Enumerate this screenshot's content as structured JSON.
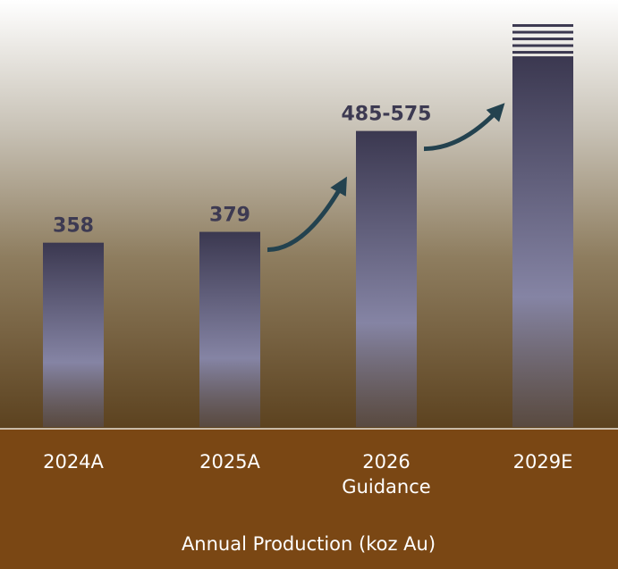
{
  "chart_data": {
    "type": "bar",
    "categories": [
      "2024A",
      "2025A",
      "2026",
      "2029E"
    ],
    "category_sublabels": [
      "",
      "",
      "Guidance",
      ""
    ],
    "values": [
      358,
      379,
      575,
      720
    ],
    "value_labels": [
      "358",
      "379",
      "485-575",
      ""
    ],
    "open_ended": [
      false,
      false,
      false,
      true
    ],
    "xlabel": "Annual Production (koz Au)",
    "ylabel": "",
    "ylim": [
      0,
      760
    ],
    "grid": false,
    "legend": "none",
    "growth_arrows": [
      {
        "from": "2025A",
        "to": "2026"
      },
      {
        "from": "2026",
        "to": "2029E"
      }
    ]
  },
  "colors": {
    "background_top": "#ffffff",
    "background_bottom": "#5a3d1a",
    "axis_band": "#7a4714",
    "bar_dark": "#3d3a52",
    "bar_light": "#8585a5",
    "value_label": "#3d3a52",
    "arrow": "#23424f",
    "axis_text": "#ffffff"
  }
}
